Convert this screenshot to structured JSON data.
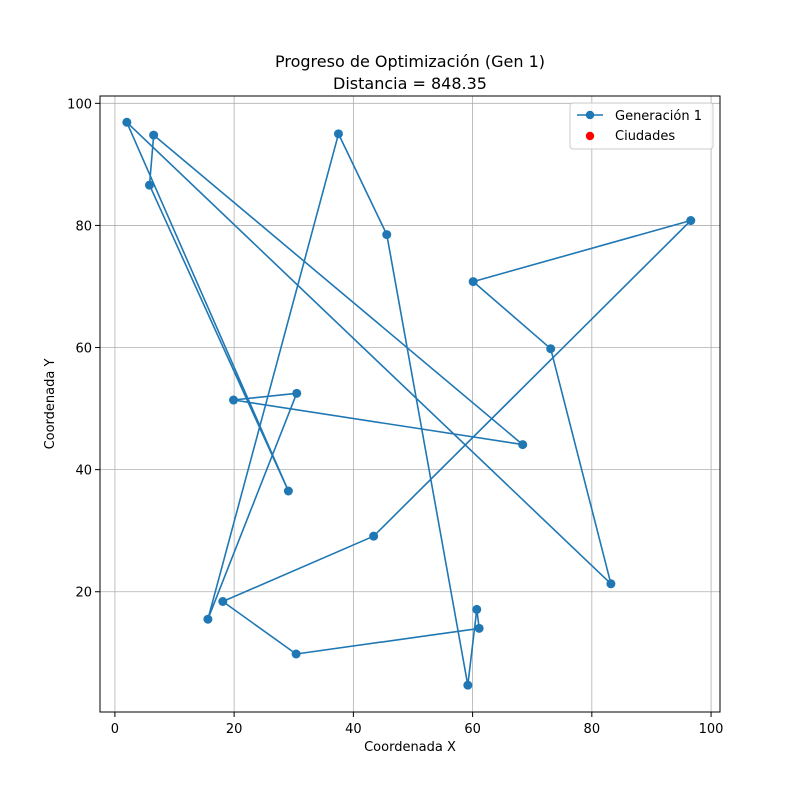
{
  "chart_data": {
    "type": "line",
    "title": "Progreso de Optimización (Gen 1)",
    "subtitle": "Distancia = 848.35",
    "xlabel": "Coordenada X",
    "ylabel": "Coordenada Y",
    "xlim": [
      -2.5,
      101.5
    ],
    "ylim": [
      0.3,
      101.2
    ],
    "xticks": [
      0,
      20,
      40,
      60,
      80,
      100
    ],
    "yticks": [
      20,
      40,
      60,
      80,
      100
    ],
    "grid": true,
    "legend_position": "top-right",
    "colors": {
      "route": "#1f77b4",
      "cities": "#ff0000",
      "grid": "#b0b0b0"
    },
    "series": [
      {
        "name": "Generación 1",
        "marker": "circle",
        "x": [
          2.0,
          83.2,
          73.1,
          60.1,
          96.6,
          43.4,
          18.1,
          30.4,
          61.1,
          60.7,
          59.2,
          45.6,
          37.5,
          15.6,
          30.5,
          19.9,
          68.4,
          6.5,
          5.8
        ],
        "y": [
          96.9,
          21.3,
          59.8,
          70.8,
          80.8,
          29.1,
          18.4,
          9.8,
          14.0,
          17.1,
          4.7,
          78.5,
          95.0,
          15.5,
          52.5,
          51.4,
          44.1,
          94.8,
          86.6
        ]
      }
    ],
    "series_closing_points": {
      "x": [
        29.1,
        2.0
      ],
      "y": [
        36.5,
        96.9
      ]
    },
    "cities_label": "Ciudades"
  }
}
